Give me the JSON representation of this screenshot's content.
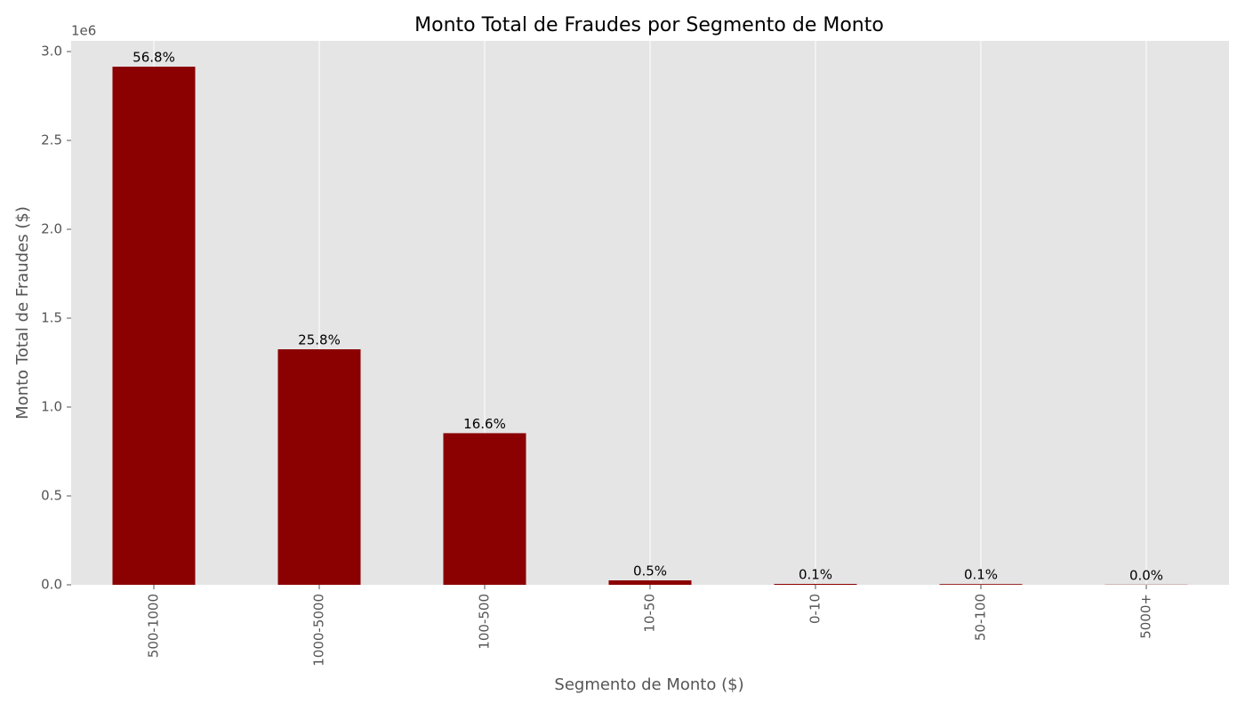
{
  "chart_data": {
    "type": "bar",
    "title": "Monto Total de Fraudes por Segmento de Monto",
    "x_label": "Segmento de Monto ($)",
    "y_label": "Monto Total de Fraudes ($)",
    "y_offset_label": "1e6",
    "categories": [
      "500-1000",
      "1000-5000",
      "100-500",
      "10-50",
      "0-10",
      "50-100",
      "5000+"
    ],
    "values": [
      2915000,
      1325000,
      853000,
      25000,
      5000,
      4000,
      1000
    ],
    "data_labels": [
      "56.8%",
      "25.8%",
      "16.6%",
      "0.5%",
      "0.1%",
      "0.1%",
      "0.0%"
    ],
    "color": "#8b0000",
    "ylim": [
      0,
      3060000
    ],
    "yticks": [
      {
        "value": 0,
        "label": "0.0"
      },
      {
        "value": 500000,
        "label": "0.5"
      },
      {
        "value": 1000000,
        "label": "1.0"
      },
      {
        "value": 1500000,
        "label": "1.5"
      },
      {
        "value": 2000000,
        "label": "2.0"
      },
      {
        "value": 2500000,
        "label": "2.5"
      },
      {
        "value": 3000000,
        "label": "3.0"
      }
    ],
    "grid": "x"
  }
}
